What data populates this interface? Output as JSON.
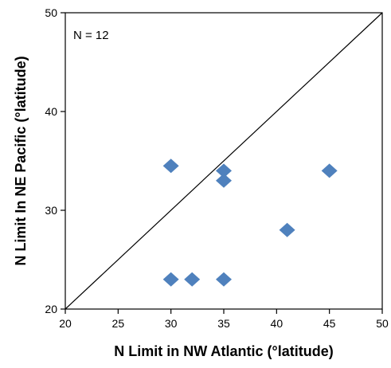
{
  "chart_data": {
    "type": "scatter",
    "title": "",
    "xlabel": "N Limit in NW Atlantic  (°latitude)",
    "ylabel": "N Limit In NE Pacific (°latitude)",
    "xlim": [
      20,
      50
    ],
    "ylim": [
      20,
      50
    ],
    "x_ticks": [
      20,
      25,
      30,
      35,
      40,
      45,
      50
    ],
    "y_ticks": [
      20,
      30,
      40,
      50
    ],
    "grid": false,
    "legend": "none",
    "annotation": "N = 12",
    "reference_line": {
      "from": [
        20,
        20
      ],
      "to": [
        50,
        50
      ],
      "label": ""
    },
    "marker": "diamond",
    "marker_color": "#4F81BD",
    "points": [
      {
        "x": 30,
        "y": 34.5
      },
      {
        "x": 35,
        "y": 34
      },
      {
        "x": 35,
        "y": 33
      },
      {
        "x": 45,
        "y": 34
      },
      {
        "x": 41,
        "y": 28
      },
      {
        "x": 30,
        "y": 23
      },
      {
        "x": 32,
        "y": 23
      },
      {
        "x": 35,
        "y": 23
      }
    ]
  }
}
